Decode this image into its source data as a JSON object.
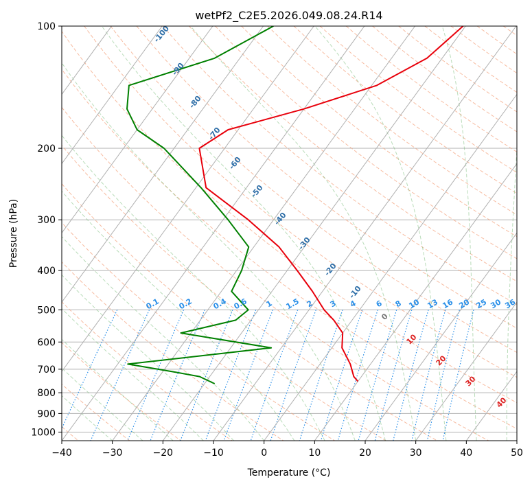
{
  "chart_data": {
    "type": "line",
    "title": "wetPf2_C2E5.2026.049.08.24.R14",
    "xlabel": "Temperature (°C)",
    "ylabel": "Pressure (hPa)",
    "xlim": [
      -40,
      50
    ],
    "ylim": [
      1050,
      100
    ],
    "yscale": "log",
    "skew": true,
    "grid": true,
    "x_ticks": [
      -40,
      -30,
      -20,
      -10,
      0,
      10,
      20,
      30,
      40,
      50
    ],
    "y_ticks": [
      100,
      200,
      300,
      400,
      500,
      600,
      700,
      800,
      900,
      1000
    ],
    "series": [
      {
        "color": "#e8000b",
        "points": [
          [
            -20.5,
            100
          ],
          [
            -23,
            120
          ],
          [
            -29,
            140
          ],
          [
            -40,
            160
          ],
          [
            -52,
            180
          ],
          [
            -55,
            200
          ],
          [
            -48,
            250
          ],
          [
            -35,
            300
          ],
          [
            -25,
            350
          ],
          [
            -18,
            400
          ],
          [
            -12,
            450
          ],
          [
            -7,
            500
          ],
          [
            -3.6,
            530
          ],
          [
            0,
            570
          ],
          [
            2,
            620
          ],
          [
            6,
            680
          ],
          [
            8.5,
            730
          ],
          [
            10,
            750
          ]
        ]
      },
      {
        "color": "#008000",
        "points": [
          [
            -58,
            100
          ],
          [
            -65,
            120
          ],
          [
            -78,
            140
          ],
          [
            -75,
            160
          ],
          [
            -70,
            180
          ],
          [
            -62,
            200
          ],
          [
            -49,
            250
          ],
          [
            -39,
            300
          ],
          [
            -31,
            350
          ],
          [
            -29,
            400
          ],
          [
            -28,
            450
          ],
          [
            -22,
            500
          ],
          [
            -23,
            530
          ],
          [
            -32,
            570
          ],
          [
            -12,
            620
          ],
          [
            -38,
            680
          ],
          [
            -28,
            710
          ],
          [
            -22,
            730
          ],
          [
            -18,
            760
          ]
        ]
      }
    ],
    "dry_adiabat_labels": [
      "-100",
      "-90",
      "-80",
      "-70",
      "-60",
      "-50",
      "-40",
      "-30",
      "-20",
      "-10"
    ],
    "moist_adiabat_labels": [
      "0",
      "10",
      "20",
      "30",
      "40"
    ],
    "mixing_ratio_labels": [
      "0.1",
      "0.2",
      "0.4",
      "0.6",
      "1",
      "1.5",
      "2",
      "3",
      "4",
      "6",
      "8",
      "10",
      "13",
      "16",
      "20",
      "25",
      "30",
      "36"
    ]
  }
}
